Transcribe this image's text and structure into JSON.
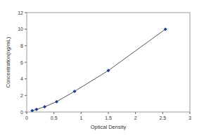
{
  "chart_data": {
    "type": "line",
    "x_label": "Optical Density",
    "y_label": "Concentration(ng/mL)",
    "x": [
      0.1,
      0.18,
      0.33,
      0.55,
      0.88,
      1.5,
      2.55
    ],
    "values": [
      0.16,
      0.31,
      0.63,
      1.25,
      2.5,
      5,
      10
    ],
    "color": "#1f3f8a",
    "marker": "diamond",
    "xlim": [
      0,
      3
    ],
    "xticks": [
      0,
      0.5,
      1,
      1.5,
      2,
      2.5,
      3
    ],
    "ylim": [
      0,
      12
    ],
    "yticks": [
      0,
      2,
      4,
      6,
      8,
      10,
      12
    ],
    "grid": false
  }
}
